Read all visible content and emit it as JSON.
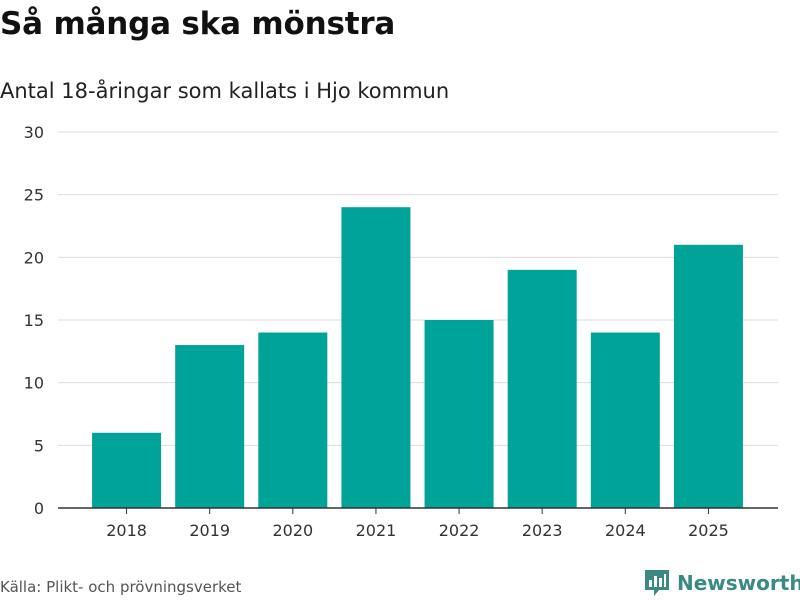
{
  "title": "Så många ska mönstra",
  "subtitle": "Antal 18-åringar som kallats i Hjo kommun",
  "source": "Källa: Plikt- och prövningsverket",
  "brand": {
    "name": "Newsworthy",
    "icon": "bar-chart-logo-icon",
    "color": "#3a8a84"
  },
  "colors": {
    "bar": "#00a398",
    "grid": "#dddddd",
    "axis": "#333333",
    "text": "#333333"
  },
  "chart_data": {
    "type": "bar",
    "title": "Så många ska mönstra",
    "subtitle": "Antal 18-åringar som kallats i Hjo kommun",
    "xlabel": "",
    "ylabel": "",
    "categories": [
      "2018",
      "2019",
      "2020",
      "2021",
      "2022",
      "2023",
      "2024",
      "2025"
    ],
    "values": [
      6,
      13,
      14,
      24,
      15,
      19,
      14,
      21
    ],
    "ylim": [
      0,
      30
    ],
    "yticks": [
      0,
      5,
      10,
      15,
      20,
      25,
      30
    ],
    "grid": true,
    "legend": "none"
  }
}
